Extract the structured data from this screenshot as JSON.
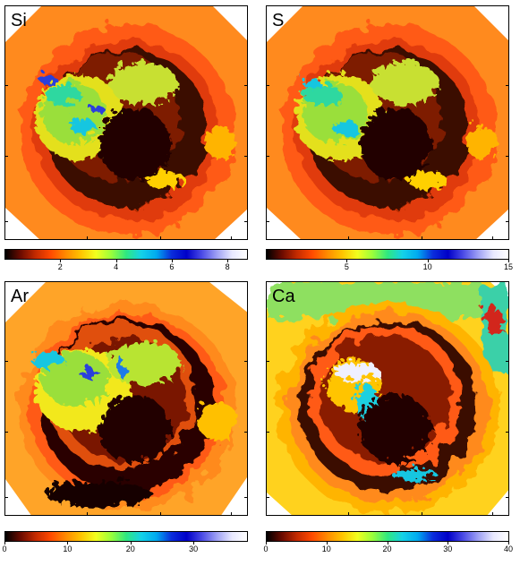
{
  "panels": [
    {
      "id": "si",
      "label": "Si",
      "colorbar_ticks": [
        "2",
        "4",
        "6",
        "8"
      ],
      "colorbar_values": [
        2,
        4,
        6,
        8
      ],
      "colorbar_max": 8.7
    },
    {
      "id": "s",
      "label": "S",
      "colorbar_ticks": [
        "5",
        "10",
        "15"
      ],
      "colorbar_values": [
        5,
        10,
        15
      ],
      "colorbar_max": 15
    },
    {
      "id": "ar",
      "label": "Ar",
      "colorbar_ticks": [
        "0",
        "10",
        "20",
        "30"
      ],
      "colorbar_values": [
        0,
        10,
        20,
        30
      ],
      "colorbar_max": 38.5
    },
    {
      "id": "ca",
      "label": "Ca",
      "colorbar_ticks": [
        "0",
        "10",
        "20",
        "30",
        "40"
      ],
      "colorbar_values": [
        0,
        10,
        20,
        30,
        40
      ],
      "colorbar_max": 40
    }
  ],
  "colormap": [
    "#000000",
    "#6a0b00",
    "#c42a00",
    "#ff4a00",
    "#ff8a00",
    "#ffc400",
    "#f2ff1e",
    "#9bff3a",
    "#2fe880",
    "#14d2e8",
    "#00aaf0",
    "#0a2ddc",
    "#0000c8",
    "#4a4ae6",
    "#9ea0f4",
    "#e8e8ff",
    "#ffffff"
  ],
  "colors": {
    "rim_orange": "#ff7a1e",
    "outer_orange": "#ff9d2a",
    "hot_core": "#2a0500"
  }
}
